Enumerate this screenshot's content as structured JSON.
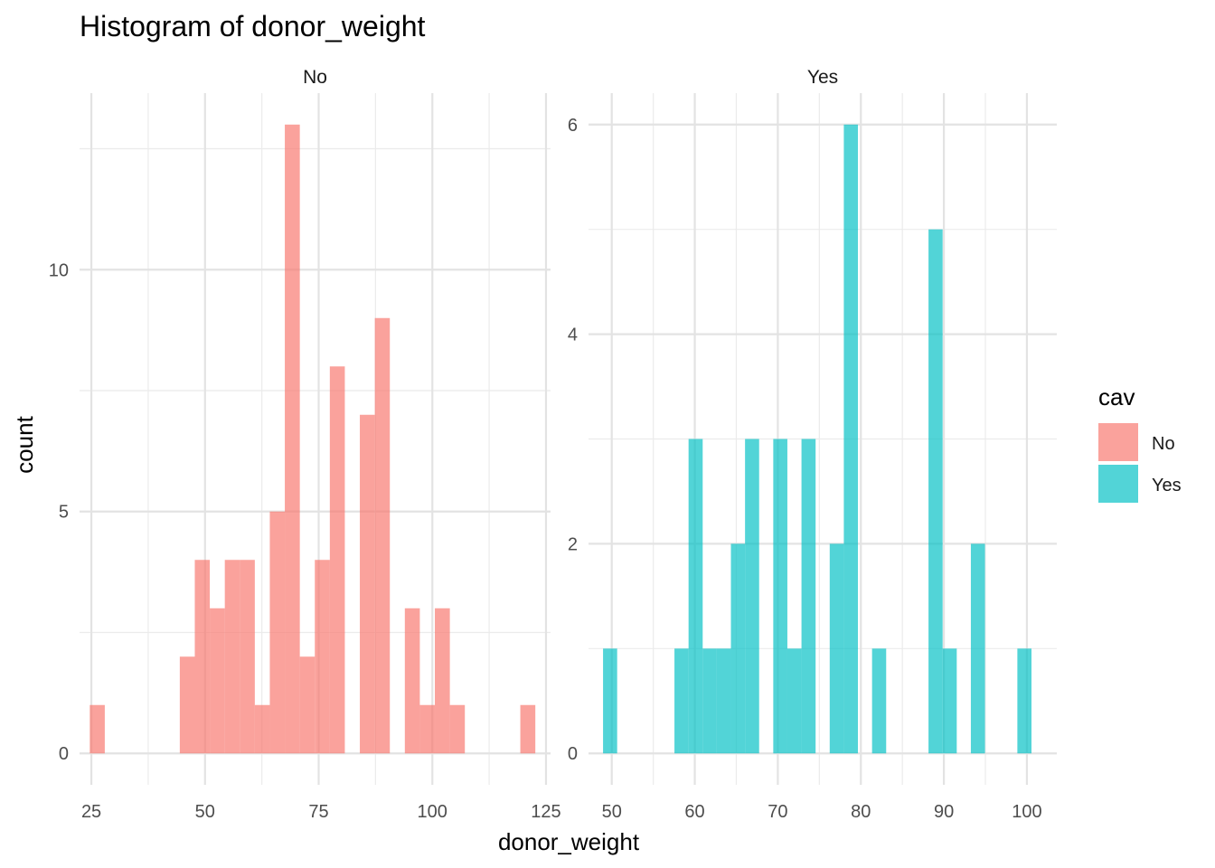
{
  "chart_data": {
    "type": "bar",
    "title": "Histogram of donor_weight",
    "xlabel": "donor_weight",
    "ylabel": "count",
    "grid": true,
    "legend": {
      "title": "cav",
      "position": "right",
      "entries": [
        {
          "label": "No",
          "color": "#F8766D"
        },
        {
          "label": "Yes",
          "color": "#00BFC4"
        }
      ]
    },
    "panels": [
      {
        "strip": "No",
        "color": "#F8766D",
        "xlim": [
          22.4,
          126
        ],
        "ylim": [
          -0.65,
          13.65
        ],
        "x_ticks": [
          25,
          50,
          75,
          100,
          125
        ],
        "x_tick_labels": [
          "25",
          "50",
          "75",
          "100",
          "125"
        ],
        "y_ticks": [
          0,
          5,
          10
        ],
        "y_tick_labels": [
          "0",
          "5",
          "10"
        ],
        "bin_width": 3.3,
        "bins": [
          {
            "x": 26.3,
            "count": 1
          },
          {
            "x": 46.1,
            "count": 2
          },
          {
            "x": 49.4,
            "count": 4
          },
          {
            "x": 52.7,
            "count": 3
          },
          {
            "x": 56.0,
            "count": 4
          },
          {
            "x": 59.3,
            "count": 4
          },
          {
            "x": 62.6,
            "count": 1
          },
          {
            "x": 65.9,
            "count": 5
          },
          {
            "x": 69.2,
            "count": 13
          },
          {
            "x": 72.5,
            "count": 2
          },
          {
            "x": 75.8,
            "count": 4
          },
          {
            "x": 79.1,
            "count": 8
          },
          {
            "x": 85.7,
            "count": 7
          },
          {
            "x": 89.0,
            "count": 9
          },
          {
            "x": 95.6,
            "count": 3
          },
          {
            "x": 98.9,
            "count": 1
          },
          {
            "x": 102.2,
            "count": 3
          },
          {
            "x": 105.5,
            "count": 1
          },
          {
            "x": 121.0,
            "count": 1
          }
        ]
      },
      {
        "strip": "Yes",
        "color": "#00BFC4",
        "xlim": [
          47.2,
          103.6
        ],
        "ylim": [
          -0.3,
          6.3
        ],
        "x_ticks": [
          50,
          60,
          70,
          80,
          90,
          100
        ],
        "x_tick_labels": [
          "50",
          "60",
          "70",
          "80",
          "90",
          "100"
        ],
        "y_ticks": [
          0,
          2,
          4,
          6
        ],
        "y_tick_labels": [
          "0",
          "2",
          "4",
          "6"
        ],
        "bin_width": 1.7,
        "bins": [
          {
            "x": 49.8,
            "count": 1
          },
          {
            "x": 58.4,
            "count": 1
          },
          {
            "x": 60.1,
            "count": 3
          },
          {
            "x": 61.8,
            "count": 1
          },
          {
            "x": 63.5,
            "count": 1
          },
          {
            "x": 65.2,
            "count": 2
          },
          {
            "x": 66.9,
            "count": 3
          },
          {
            "x": 70.3,
            "count": 3
          },
          {
            "x": 72.0,
            "count": 1
          },
          {
            "x": 73.7,
            "count": 3
          },
          {
            "x": 77.1,
            "count": 2
          },
          {
            "x": 78.8,
            "count": 6
          },
          {
            "x": 82.2,
            "count": 1
          },
          {
            "x": 89.0,
            "count": 5
          },
          {
            "x": 90.7,
            "count": 1
          },
          {
            "x": 94.1,
            "count": 2
          },
          {
            "x": 99.7,
            "count": 1
          }
        ]
      }
    ]
  }
}
